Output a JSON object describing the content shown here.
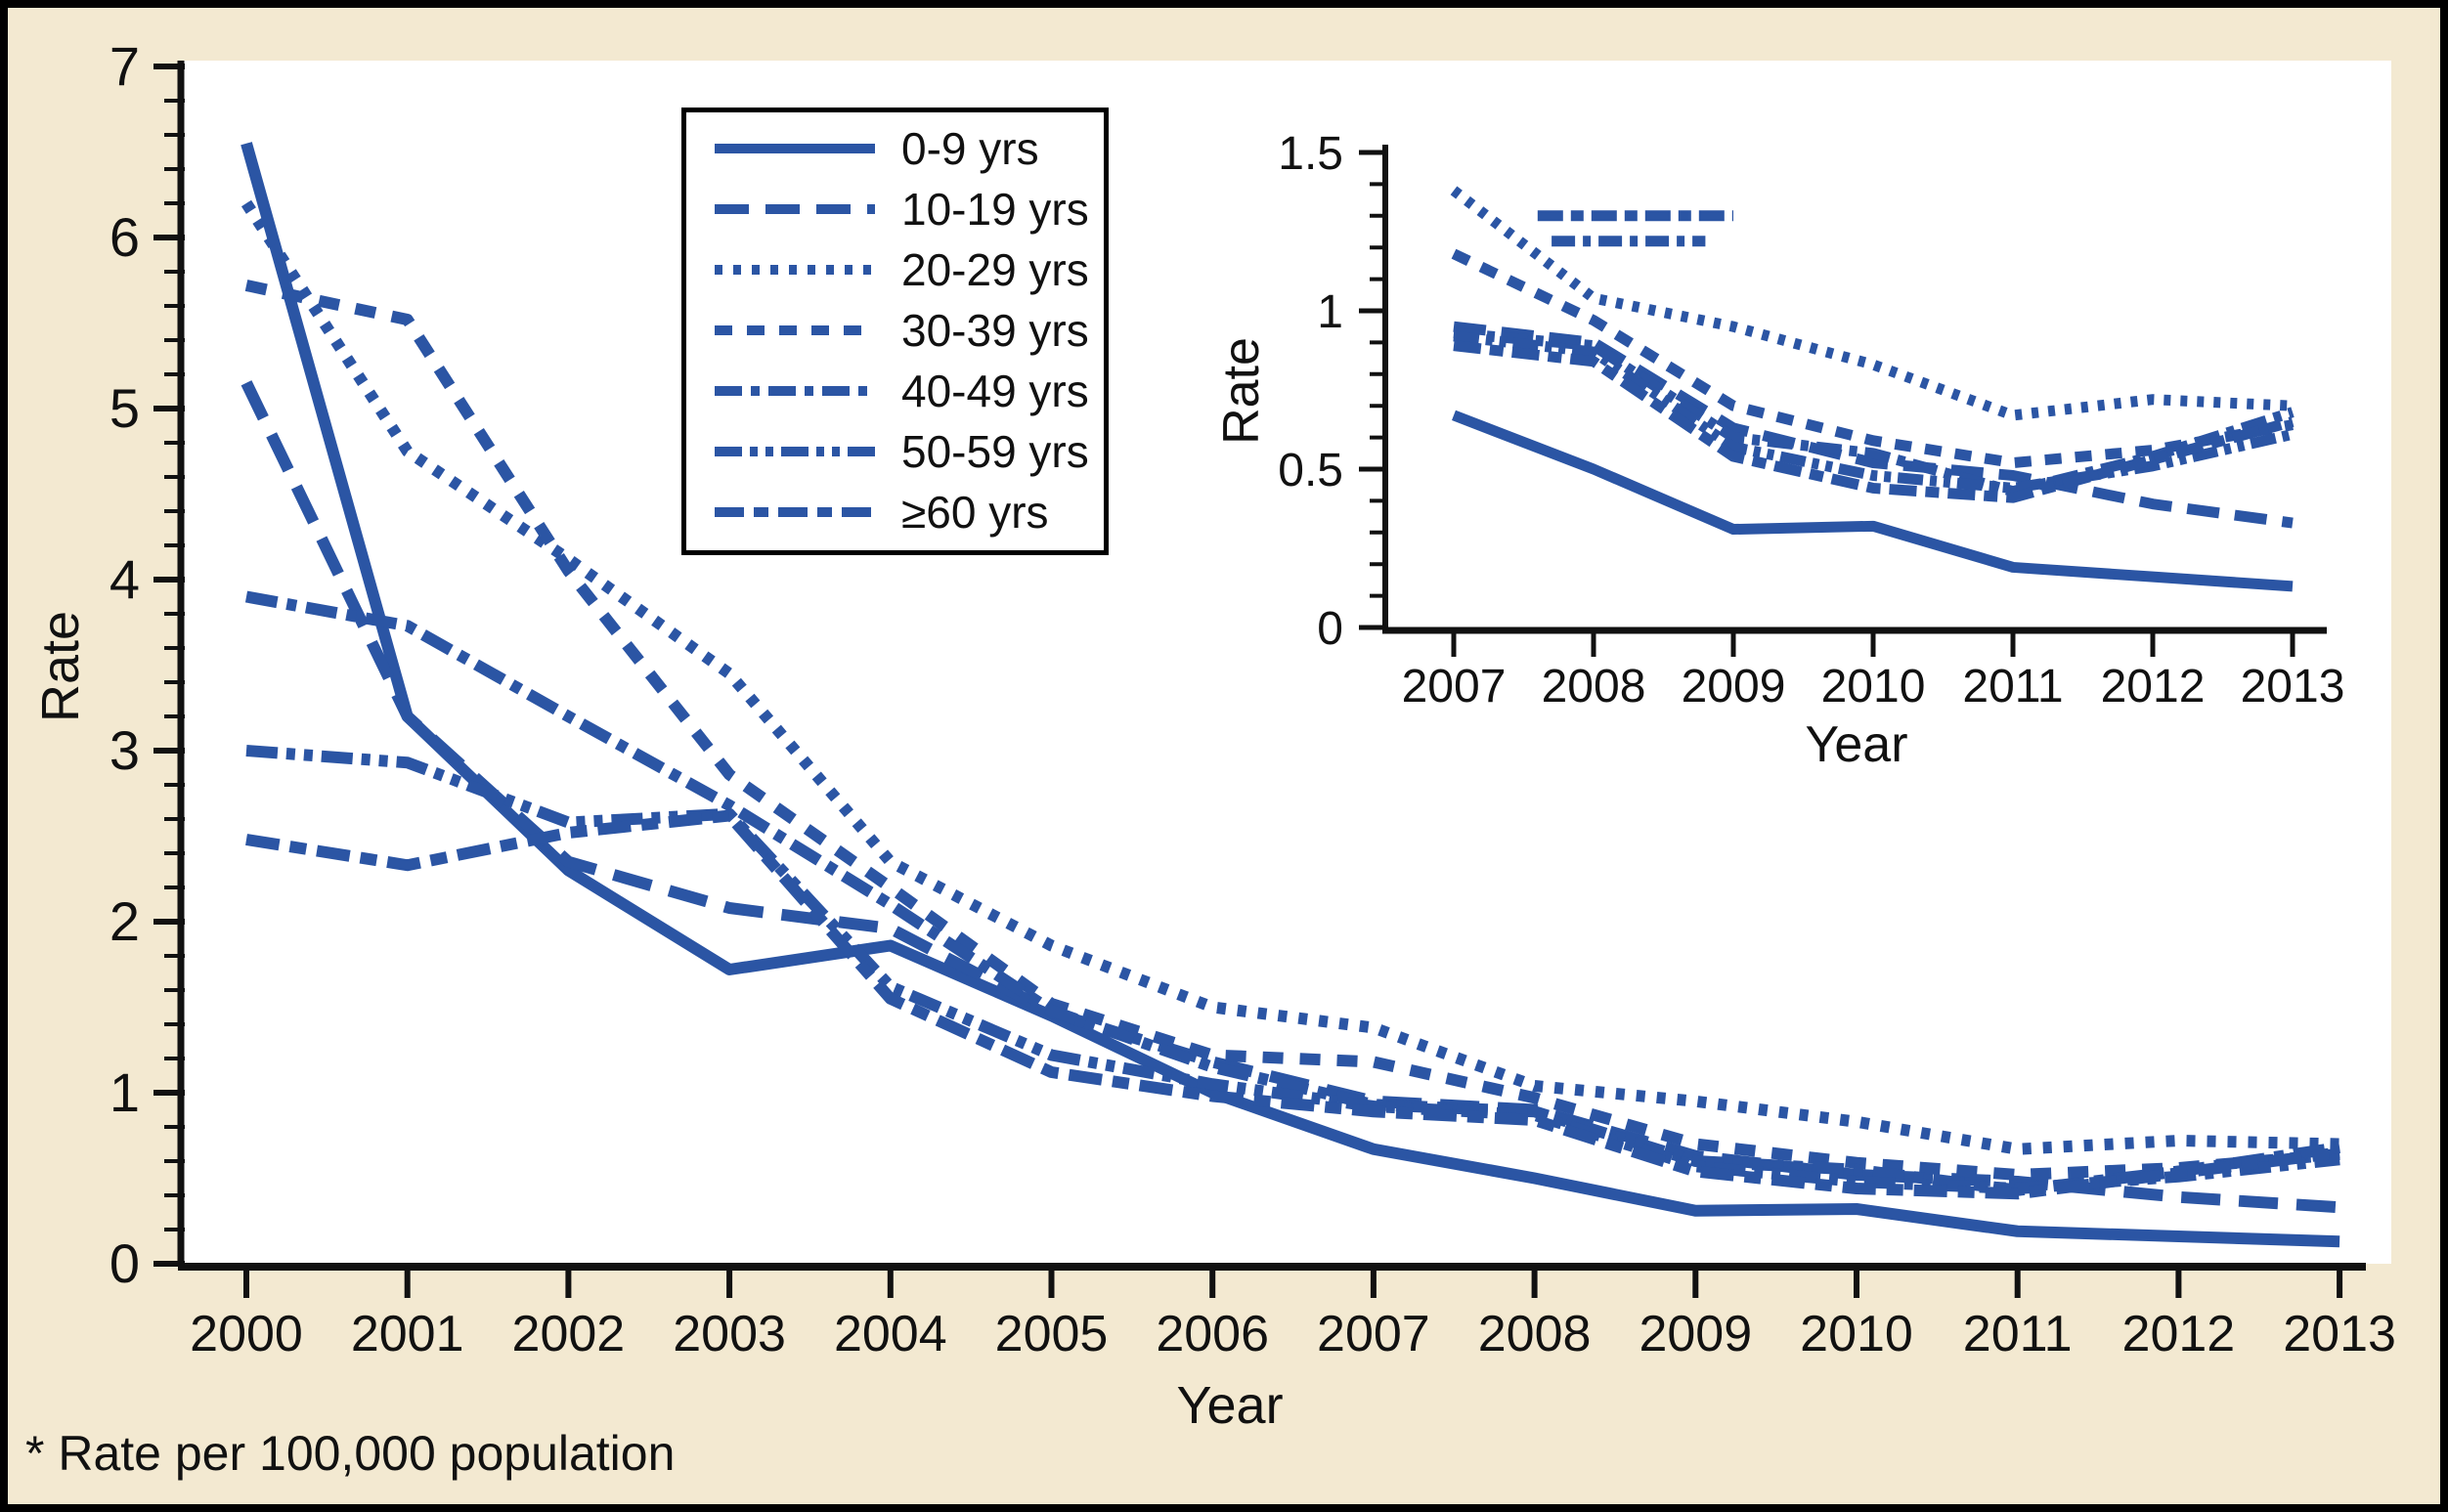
{
  "figure": {
    "footnote": "* Rate per 100,000 population",
    "background_color": "#f3e9d1",
    "plot_background": "#ffffff",
    "line_color": "#2b55a4",
    "axis_color": "#111111"
  },
  "legend": {
    "items": [
      {
        "label": "0-9 yrs",
        "style": "solid"
      },
      {
        "label": "10-19 yrs",
        "style": "long-dash"
      },
      {
        "label": "20-29 yrs",
        "style": "dot"
      },
      {
        "label": "30-39 yrs",
        "style": "dash"
      },
      {
        "label": "40-49 yrs",
        "style": "dash-dot"
      },
      {
        "label": "50-59 yrs",
        "style": "dash-dot-dot"
      },
      {
        "label": "≥60 yrs",
        "style": "long-dash-dot"
      }
    ]
  },
  "chart_data": {
    "type": "line",
    "title": "",
    "x": [
      2000,
      2001,
      2002,
      2003,
      2004,
      2005,
      2006,
      2007,
      2008,
      2009,
      2010,
      2011,
      2012,
      2013
    ],
    "series": [
      {
        "name": "0-9 yrs",
        "style": "solid",
        "values": [
          6.55,
          3.2,
          2.3,
          1.72,
          1.86,
          1.45,
          1.0,
          0.67,
          0.5,
          0.31,
          0.32,
          0.19,
          0.16,
          0.13
        ]
      },
      {
        "name": "10-19 yrs",
        "style": "long-dash",
        "values": [
          5.15,
          3.2,
          2.35,
          2.08,
          1.96,
          1.47,
          1.18,
          0.95,
          0.9,
          0.63,
          0.52,
          0.48,
          0.39,
          0.33
        ]
      },
      {
        "name": "20-29 yrs",
        "style": "dot",
        "values": [
          6.2,
          4.75,
          4.12,
          3.45,
          2.35,
          1.86,
          1.5,
          1.38,
          1.04,
          0.95,
          0.83,
          0.67,
          0.72,
          0.7
        ]
      },
      {
        "name": "30-39 yrs",
        "style": "dash",
        "values": [
          5.72,
          5.52,
          4.05,
          2.86,
          2.2,
          1.52,
          1.22,
          1.18,
          0.97,
          0.7,
          0.59,
          0.52,
          0.56,
          0.64
        ]
      },
      {
        "name": "40-49 yrs",
        "style": "dash-dot",
        "values": [
          3.9,
          3.73,
          3.2,
          2.68,
          2.1,
          1.48,
          1.15,
          0.93,
          0.89,
          0.6,
          0.55,
          0.43,
          0.54,
          0.68
        ]
      },
      {
        "name": "50-59 yrs",
        "style": "dash-dot-dot",
        "values": [
          3.0,
          2.93,
          2.58,
          2.63,
          1.62,
          1.22,
          1.05,
          0.92,
          0.87,
          0.57,
          0.48,
          0.44,
          0.51,
          0.61
        ]
      },
      {
        "name": "≥60 yrs",
        "style": "long-dash-dot",
        "values": [
          2.48,
          2.33,
          2.52,
          2.62,
          1.55,
          1.12,
          0.98,
          0.89,
          0.84,
          0.54,
          0.44,
          0.41,
          0.53,
          0.65
        ]
      }
    ],
    "main_axis": {
      "xlabel": "Year",
      "ylabel": "Rate",
      "ylim": [
        0,
        7
      ],
      "y_minor_step": 0.2,
      "ytick_labels": [
        "0",
        "1",
        "2",
        "3",
        "4",
        "5",
        "6",
        "7"
      ],
      "xtick_labels": [
        "2000",
        "2001",
        "2002",
        "2003",
        "2004",
        "2005",
        "2006",
        "2007",
        "2008",
        "2009",
        "2010",
        "2011",
        "2012",
        "2013"
      ],
      "grid": "off",
      "legend_position": "upper-center-left"
    },
    "inset": {
      "xlabel": "Year",
      "ylabel": "Rate",
      "ylim": [
        0,
        1.5
      ],
      "y_minor_step": 0.1,
      "ytick_labels": [
        "0",
        "0.5",
        "1",
        "1.5"
      ],
      "xtick_labels": [
        "2007",
        "2008",
        "2009",
        "2010",
        "2011",
        "2012",
        "2013"
      ],
      "x_start_year": 2007,
      "annotations": [
        {
          "name": "dash-sample-upper",
          "value": 1.3,
          "year_start": 2007.6,
          "year_end": 2009.0,
          "style": "long-dash-dot"
        },
        {
          "name": "dash-sample-lower",
          "value": 1.22,
          "year_start": 2007.7,
          "year_end": 2008.8,
          "style": "dash-dot"
        }
      ]
    }
  }
}
